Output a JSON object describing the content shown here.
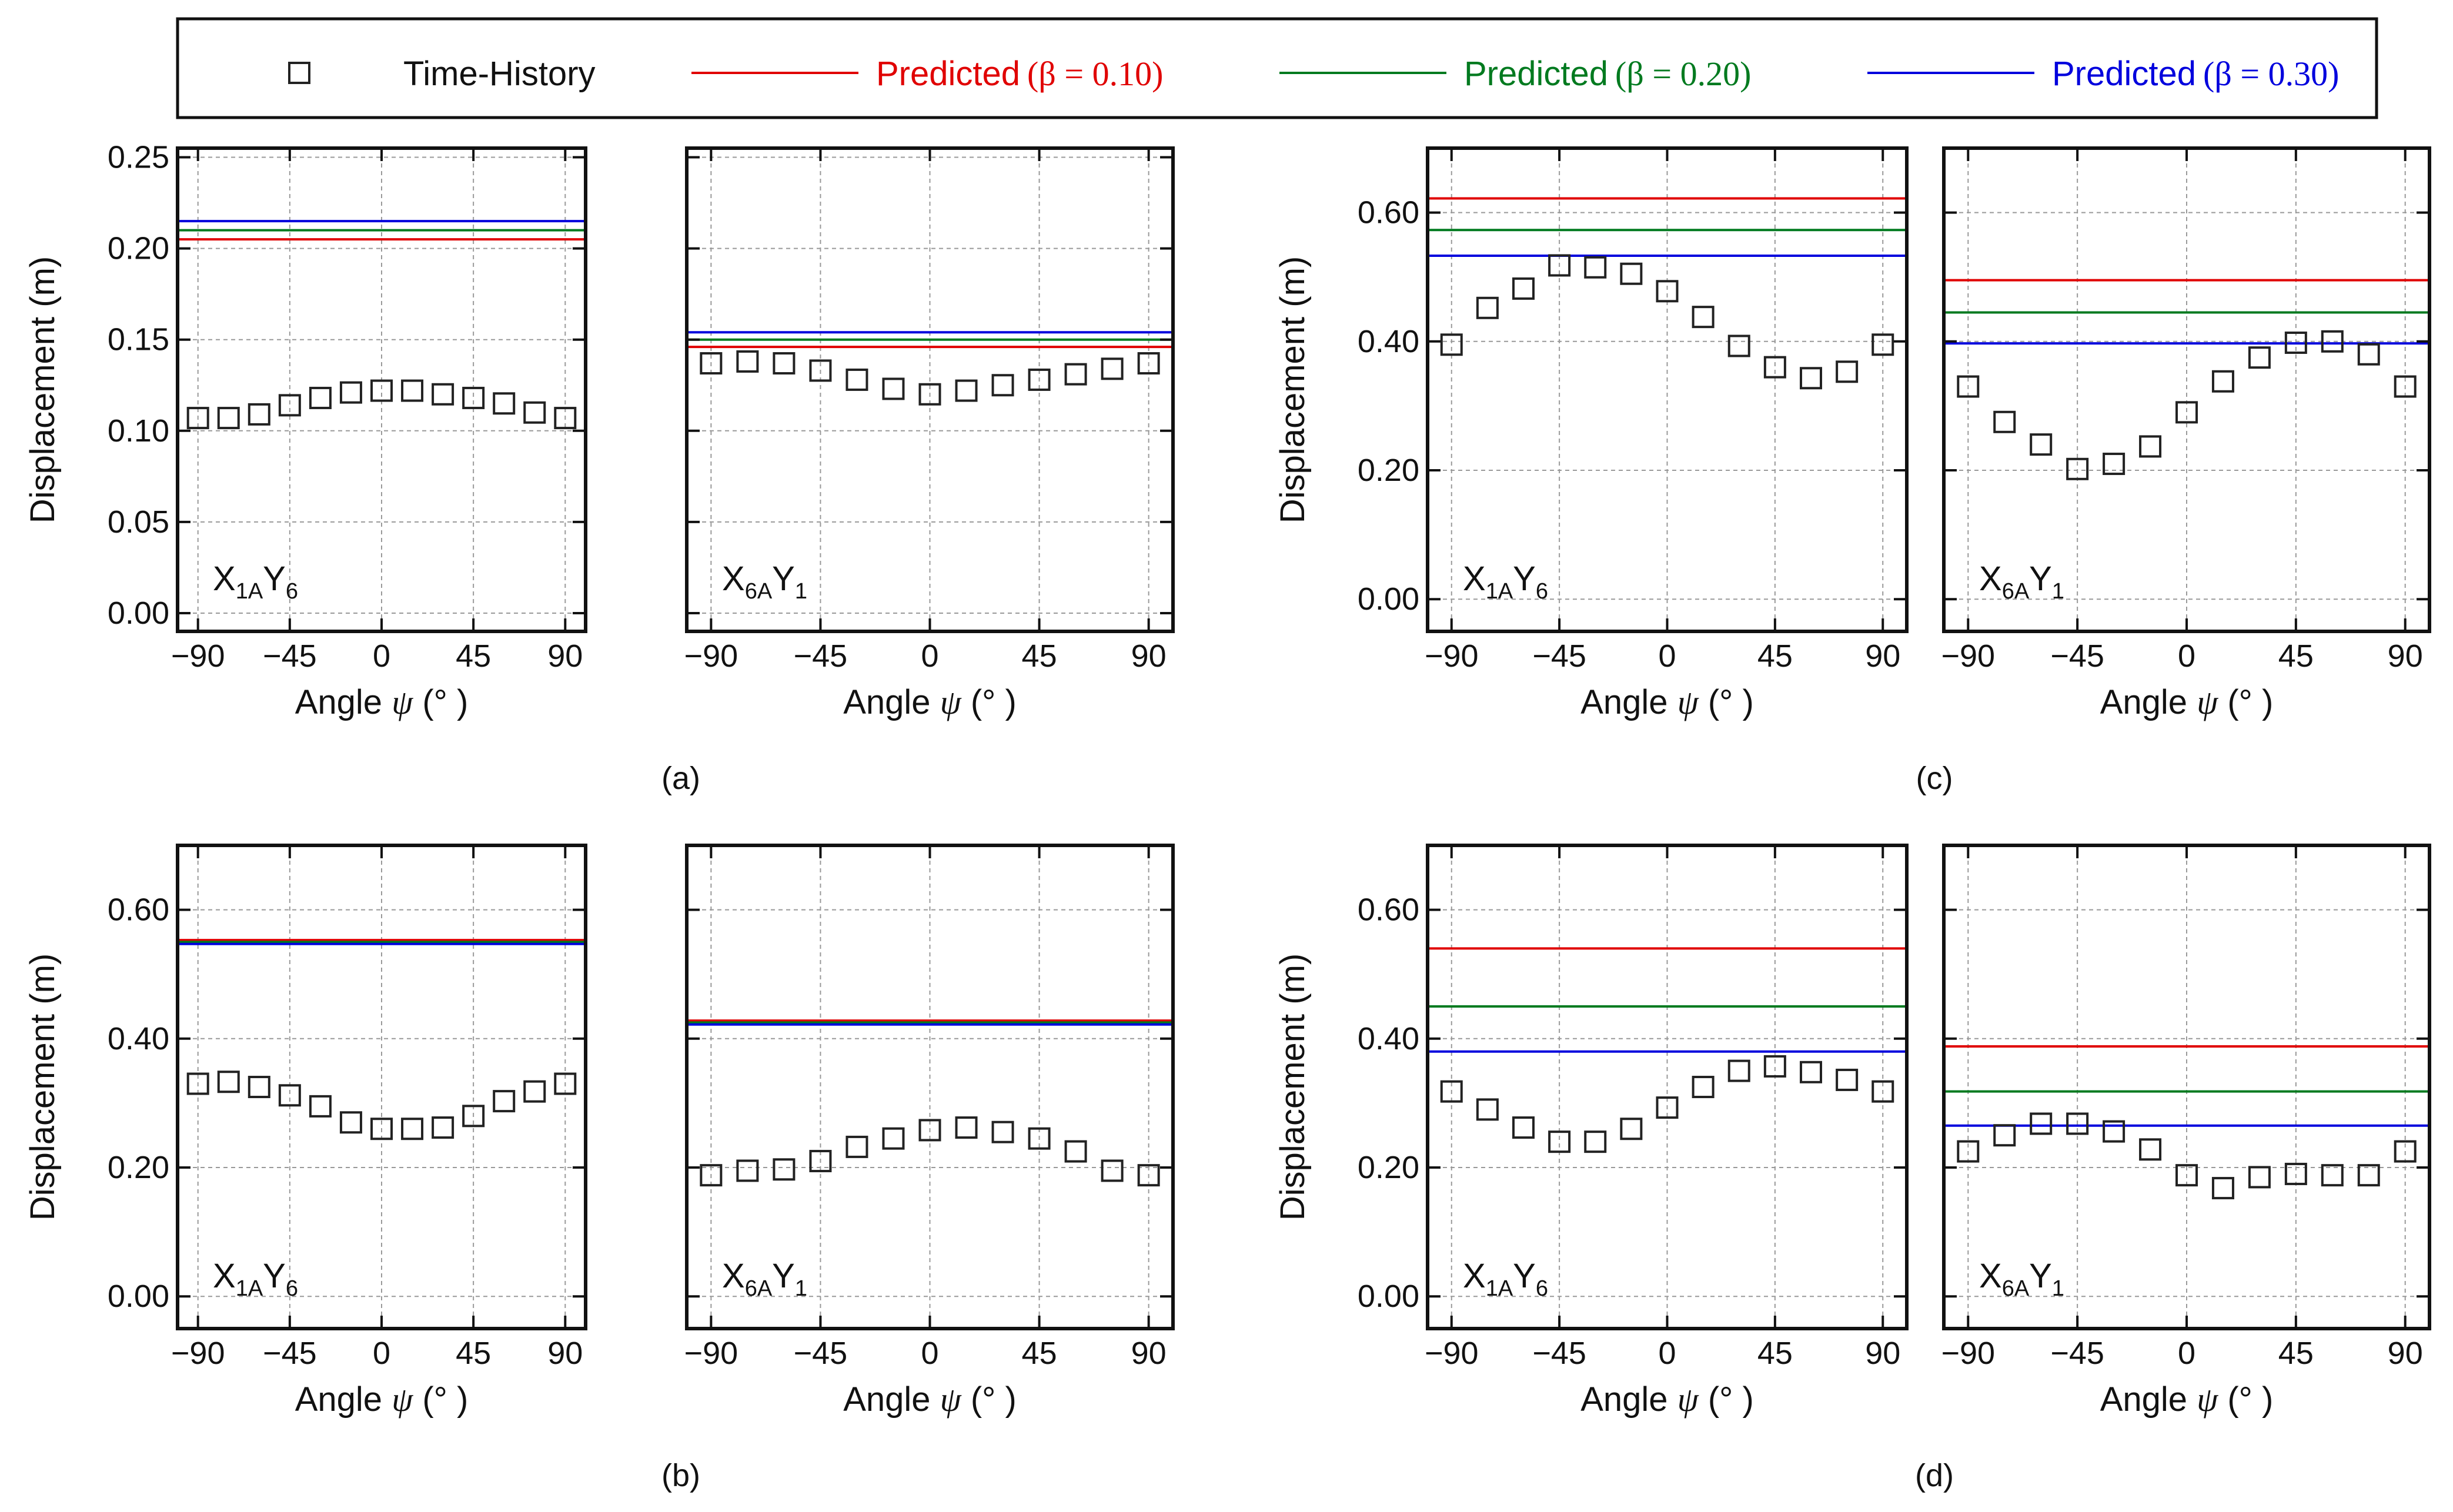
{
  "legend": {
    "time_history": "Time-History",
    "predicted_word": "Predicted",
    "beta_010": "(β = 0.10)",
    "beta_020": "(β = 0.20)",
    "beta_030": "(β = 0.30)",
    "colors": {
      "beta_010": "#e00000",
      "beta_020": "#007a1f",
      "beta_030": "#0000dd",
      "time_history": "#222222"
    }
  },
  "axes": {
    "xlabel_prefix": "Angle ",
    "xlabel_symbol": "ψ",
    "xlabel_suffix": "(°  )",
    "ylabel": "Displacement (m)"
  },
  "chart_data": [
    {
      "panel": "(a)",
      "subplot": "X1AY6",
      "label_main1": "X",
      "label_sub1": "1A",
      "label_main2": "Y",
      "label_sub2": "6",
      "type": "scatter",
      "x": [
        -90,
        -75,
        -60,
        -45,
        -30,
        -15,
        0,
        15,
        30,
        45,
        60,
        75,
        90
      ],
      "y": [
        0.107,
        0.107,
        0.109,
        0.114,
        0.118,
        0.121,
        0.122,
        0.122,
        0.12,
        0.118,
        0.115,
        0.11,
        0.107
      ],
      "predicted": {
        "beta_010": 0.205,
        "beta_020": 0.21,
        "beta_030": 0.215
      },
      "xlim": [
        -100,
        100
      ],
      "ylim": [
        -0.01,
        0.255
      ],
      "yticks": [
        0.0,
        0.05,
        0.1,
        0.15,
        0.2,
        0.25
      ],
      "ytick_labels": [
        "0.00",
        "0.05",
        "0.10",
        "0.15",
        "0.20",
        "0.25"
      ],
      "xticks": [
        -90,
        -45,
        0,
        45,
        90
      ],
      "xtick_labels": [
        "−90",
        "−45",
        "0",
        "45",
        "90"
      ]
    },
    {
      "panel": "(a)",
      "subplot": "X6AY1",
      "label_main1": "X",
      "label_sub1": "6A",
      "label_main2": "Y",
      "label_sub2": "1",
      "type": "scatter",
      "x": [
        -90,
        -75,
        -60,
        -45,
        -30,
        -15,
        0,
        15,
        30,
        45,
        60,
        75,
        90
      ],
      "y": [
        0.137,
        0.138,
        0.137,
        0.133,
        0.128,
        0.123,
        0.12,
        0.122,
        0.125,
        0.128,
        0.131,
        0.134,
        0.137
      ],
      "predicted": {
        "beta_010": 0.146,
        "beta_020": 0.15,
        "beta_030": 0.154
      },
      "xlim": [
        -100,
        100
      ],
      "ylim": [
        -0.01,
        0.255
      ],
      "yticks": [
        0.0,
        0.05,
        0.1,
        0.15,
        0.2,
        0.25
      ],
      "ytick_labels": [],
      "xticks": [
        -90,
        -45,
        0,
        45,
        90
      ],
      "xtick_labels": [
        "−90",
        "−45",
        "0",
        "45",
        "90"
      ]
    },
    {
      "panel": "(b)",
      "subplot": "X1AY6",
      "label_main1": "X",
      "label_sub1": "1A",
      "label_main2": "Y",
      "label_sub2": "6",
      "type": "scatter",
      "x": [
        -90,
        -75,
        -60,
        -45,
        -30,
        -15,
        0,
        15,
        30,
        45,
        60,
        75,
        90
      ],
      "y": [
        0.33,
        0.333,
        0.325,
        0.312,
        0.295,
        0.27,
        0.26,
        0.26,
        0.262,
        0.28,
        0.303,
        0.318,
        0.33
      ],
      "predicted": {
        "beta_010": 0.553,
        "beta_020": 0.55,
        "beta_030": 0.547
      },
      "xlim": [
        -100,
        100
      ],
      "ylim": [
        -0.05,
        0.7
      ],
      "yticks": [
        0.0,
        0.2,
        0.4,
        0.6
      ],
      "ytick_labels": [
        "0.00",
        "0.20",
        "0.40",
        "0.60"
      ],
      "xticks": [
        -90,
        -45,
        0,
        45,
        90
      ],
      "xtick_labels": [
        "−90",
        "−45",
        "0",
        "45",
        "90"
      ]
    },
    {
      "panel": "(b)",
      "subplot": "X6AY1",
      "label_main1": "X",
      "label_sub1": "6A",
      "label_main2": "Y",
      "label_sub2": "1",
      "type": "scatter",
      "x": [
        -90,
        -75,
        -60,
        -45,
        -30,
        -15,
        0,
        15,
        30,
        45,
        60,
        75,
        90
      ],
      "y": [
        0.188,
        0.195,
        0.197,
        0.21,
        0.232,
        0.245,
        0.258,
        0.262,
        0.255,
        0.245,
        0.225,
        0.195,
        0.188
      ],
      "predicted": {
        "beta_010": 0.428,
        "beta_020": 0.425,
        "beta_030": 0.422
      },
      "xlim": [
        -100,
        100
      ],
      "ylim": [
        -0.05,
        0.7
      ],
      "yticks": [
        0.0,
        0.2,
        0.4,
        0.6
      ],
      "ytick_labels": [],
      "xticks": [
        -90,
        -45,
        0,
        45,
        90
      ],
      "xtick_labels": [
        "−90",
        "−45",
        "0",
        "45",
        "90"
      ]
    },
    {
      "panel": "(c)",
      "subplot": "X1AY6",
      "label_main1": "X",
      "label_sub1": "1A",
      "label_main2": "Y",
      "label_sub2": "6",
      "type": "scatter",
      "x": [
        -90,
        -75,
        -60,
        -45,
        -30,
        -15,
        0,
        15,
        30,
        45,
        60,
        75,
        90
      ],
      "y": [
        0.395,
        0.452,
        0.482,
        0.518,
        0.515,
        0.505,
        0.478,
        0.438,
        0.393,
        0.36,
        0.343,
        0.353,
        0.395
      ],
      "predicted": {
        "beta_010": 0.622,
        "beta_020": 0.573,
        "beta_030": 0.533
      },
      "xlim": [
        -100,
        100
      ],
      "ylim": [
        -0.05,
        0.7
      ],
      "yticks": [
        0.0,
        0.2,
        0.4,
        0.6
      ],
      "ytick_labels": [
        "0.00",
        "0.20",
        "0.40",
        "0.60"
      ],
      "xticks": [
        -90,
        -45,
        0,
        45,
        90
      ],
      "xtick_labels": [
        "−90",
        "−45",
        "0",
        "45",
        "90"
      ]
    },
    {
      "panel": "(c)",
      "subplot": "X6AY1",
      "label_main1": "X",
      "label_sub1": "6A",
      "label_main2": "Y",
      "label_sub2": "1",
      "type": "scatter",
      "x": [
        -90,
        -75,
        -60,
        -45,
        -30,
        -15,
        0,
        15,
        30,
        45,
        60,
        75,
        90
      ],
      "y": [
        0.33,
        0.275,
        0.24,
        0.202,
        0.21,
        0.237,
        0.29,
        0.338,
        0.375,
        0.398,
        0.4,
        0.38,
        0.33
      ],
      "predicted": {
        "beta_010": 0.495,
        "beta_020": 0.445,
        "beta_030": 0.397
      },
      "xlim": [
        -100,
        100
      ],
      "ylim": [
        -0.05,
        0.7
      ],
      "yticks": [
        0.0,
        0.2,
        0.4,
        0.6
      ],
      "ytick_labels": [],
      "xticks": [
        -90,
        -45,
        0,
        45,
        90
      ],
      "xtick_labels": [
        "−90",
        "−45",
        "0",
        "45",
        "90"
      ]
    },
    {
      "panel": "(d)",
      "subplot": "X1AY6",
      "label_main1": "X",
      "label_sub1": "1A",
      "label_main2": "Y",
      "label_sub2": "6",
      "type": "scatter",
      "x": [
        -90,
        -75,
        -60,
        -45,
        -30,
        -15,
        0,
        15,
        30,
        45,
        60,
        75,
        90
      ],
      "y": [
        0.318,
        0.29,
        0.262,
        0.24,
        0.24,
        0.26,
        0.293,
        0.325,
        0.35,
        0.357,
        0.348,
        0.336,
        0.318
      ],
      "predicted": {
        "beta_010": 0.54,
        "beta_020": 0.45,
        "beta_030": 0.38
      },
      "xlim": [
        -100,
        100
      ],
      "ylim": [
        -0.05,
        0.7
      ],
      "yticks": [
        0.0,
        0.2,
        0.4,
        0.6
      ],
      "ytick_labels": [
        "0.00",
        "0.20",
        "0.40",
        "0.60"
      ],
      "xticks": [
        -90,
        -45,
        0,
        45,
        90
      ],
      "xtick_labels": [
        "−90",
        "−45",
        "0",
        "45",
        "90"
      ]
    },
    {
      "panel": "(d)",
      "subplot": "X6AY1",
      "label_main1": "X",
      "label_sub1": "6A",
      "label_main2": "Y",
      "label_sub2": "1",
      "type": "scatter",
      "x": [
        -90,
        -75,
        -60,
        -45,
        -30,
        -15,
        0,
        15,
        30,
        45,
        60,
        75,
        90
      ],
      "y": [
        0.225,
        0.25,
        0.268,
        0.268,
        0.256,
        0.228,
        0.188,
        0.168,
        0.185,
        0.19,
        0.188,
        0.188,
        0.225
      ],
      "predicted": {
        "beta_010": 0.388,
        "beta_020": 0.318,
        "beta_030": 0.265
      },
      "xlim": [
        -100,
        100
      ],
      "ylim": [
        -0.05,
        0.7
      ],
      "yticks": [
        0.0,
        0.2,
        0.4,
        0.6
      ],
      "ytick_labels": [],
      "xticks": [
        -90,
        -45,
        0,
        45,
        90
      ],
      "xtick_labels": [
        "−90",
        "−45",
        "0",
        "45",
        "90"
      ]
    }
  ]
}
